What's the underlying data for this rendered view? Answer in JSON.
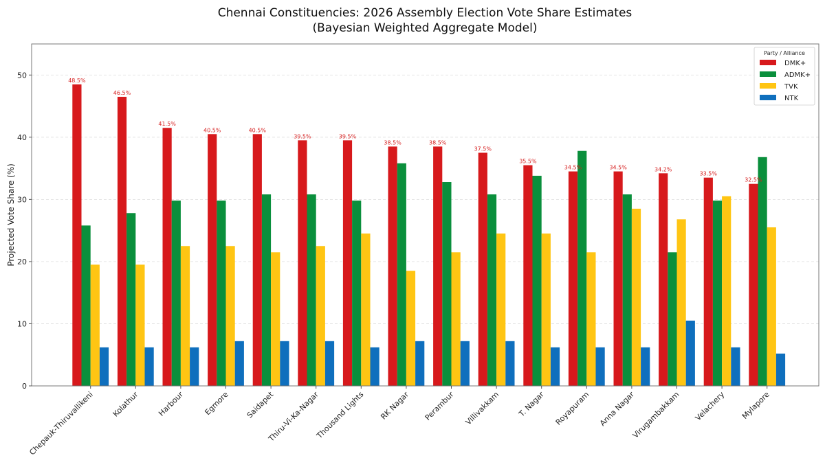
{
  "chart_data": {
    "type": "bar",
    "title_line1": "Chennai Constituencies: 2026 Assembly Election Vote Share Estimates",
    "title_line2": "(Bayesian Weighted Aggregate Model)",
    "xlabel": "",
    "ylabel": "Projected Vote Share (%)",
    "ylim": [
      0,
      55
    ],
    "yticks": [
      0,
      10,
      20,
      30,
      40,
      50
    ],
    "grid": true,
    "legend": {
      "title": "Party / Alliance",
      "placement": "top-right"
    },
    "categories": [
      "Chepauk-Thiruvallikeni",
      "Kolathur",
      "Harbour",
      "Egmore",
      "Saidapet",
      "Thiru-Vi-Ka-Nagar",
      "Thousand Lights",
      "RK Nagar",
      "Perambur",
      "Villivakkam",
      "T. Nagar",
      "Royapuram",
      "Anna Nagar",
      "Virugambakkam",
      "Velachery",
      "Mylapore"
    ],
    "series": [
      {
        "name": "DMK+",
        "color": "#d7191c",
        "values": [
          48.5,
          46.5,
          41.5,
          40.5,
          40.5,
          39.5,
          39.5,
          38.5,
          38.5,
          37.5,
          35.5,
          34.5,
          34.5,
          34.2,
          33.5,
          32.5
        ]
      },
      {
        "name": "ADMK+",
        "color": "#0a8f3c",
        "values": [
          25.8,
          27.8,
          29.8,
          29.8,
          30.8,
          30.8,
          29.8,
          35.8,
          32.8,
          30.8,
          33.8,
          37.8,
          30.8,
          21.5,
          29.8,
          36.8
        ]
      },
      {
        "name": "TVK",
        "color": "#ffc513",
        "values": [
          19.5,
          19.5,
          22.5,
          22.5,
          21.5,
          22.5,
          24.5,
          18.5,
          21.5,
          24.5,
          24.5,
          21.5,
          28.5,
          26.8,
          30.5,
          25.5
        ]
      },
      {
        "name": "NTK",
        "color": "#0f6fbd",
        "values": [
          6.2,
          6.2,
          6.2,
          7.2,
          7.2,
          7.2,
          6.2,
          7.2,
          7.2,
          7.2,
          6.2,
          6.2,
          6.2,
          10.5,
          6.2,
          5.2
        ]
      }
    ],
    "data_labels": [
      "48.5%",
      "46.5%",
      "41.5%",
      "40.5%",
      "40.5%",
      "39.5%",
      "39.5%",
      "38.5%",
      "38.5%",
      "37.5%",
      "35.5%",
      "34.5%",
      "34.5%",
      "34.2%",
      "33.5%",
      "32.5%"
    ]
  }
}
